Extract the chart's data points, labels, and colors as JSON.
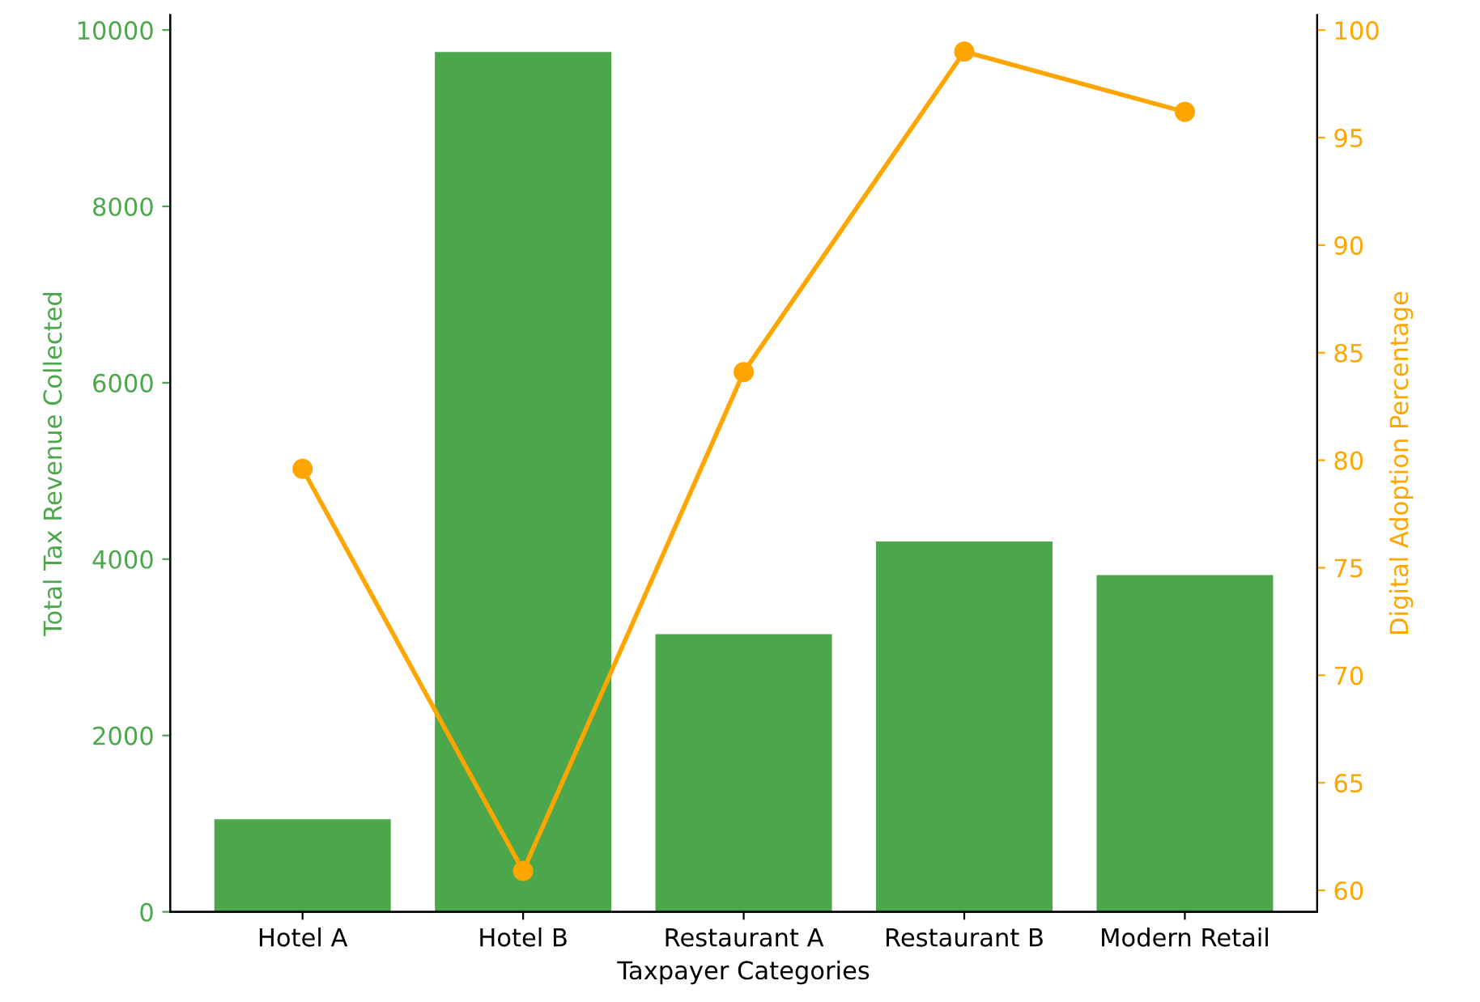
{
  "chart_data": {
    "type": "bar",
    "xlabel": "Taxpayer Categories",
    "ylabel": "Total Tax Revenue Collected",
    "y2label": "Digital Adoption Percentage",
    "categories": [
      "Hotel A",
      "Hotel B",
      "Restaurant A",
      "Restaurant B",
      "Modern Retail"
    ],
    "series": [
      {
        "color": "#4ca64c",
        "values": [
          1050,
          9750,
          3150,
          4200,
          3820
        ]
      },
      {
        "type": "line",
        "axis": "y2",
        "color": "#ffa500",
        "marker": "circle",
        "values": [
          79.6,
          60.9,
          84.1,
          99.0,
          96.2
        ]
      }
    ],
    "ylim": [
      0,
      10170
    ],
    "yticks": [
      0,
      2000,
      4000,
      6000,
      8000,
      10000
    ],
    "y2lim": [
      59.0,
      100.7
    ],
    "y2ticks": [
      60,
      65,
      70,
      75,
      80,
      85,
      90,
      95,
      100
    ],
    "grid": false,
    "legend": false
  }
}
